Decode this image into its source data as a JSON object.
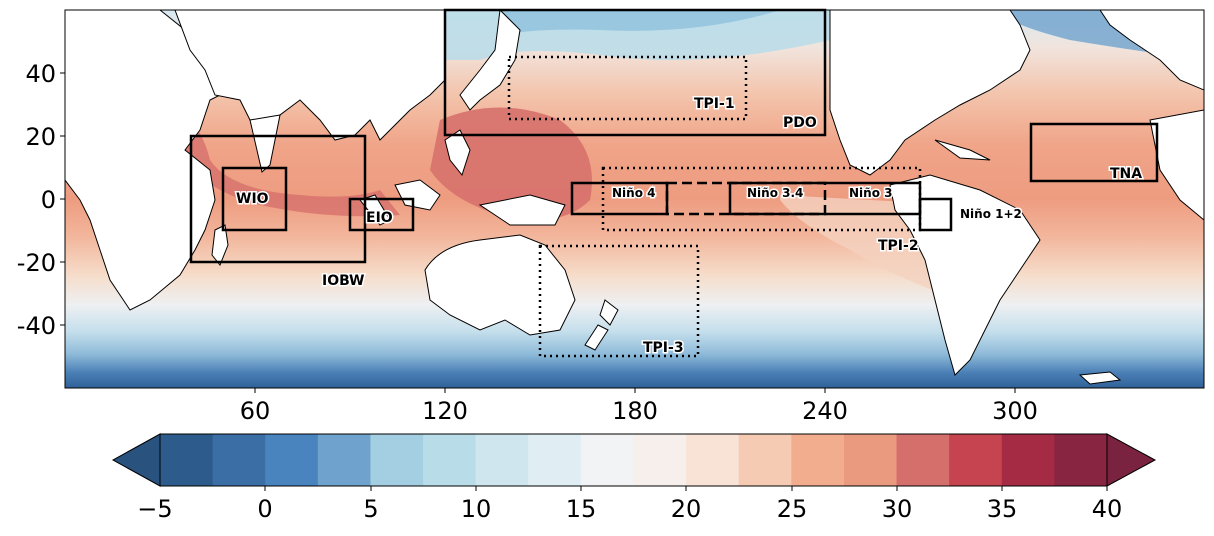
{
  "axes": {
    "x_ticks": [
      "60",
      "120",
      "180",
      "240",
      "300"
    ],
    "y_ticks": [
      "40",
      "20",
      "0",
      "-20",
      "-40"
    ]
  },
  "regions": {
    "pdo": "PDO",
    "tpi1": "TPI-1",
    "tpi2": "TPI-2",
    "tpi3": "TPI-3",
    "nino4": "Niño 4",
    "nino34": "Niño 3.4",
    "nino3": "Niño 3",
    "nino12": "Niño 1+2",
    "wio": "WIO",
    "eio": "EIO",
    "iobw": "IOBW",
    "tna": "TNA"
  },
  "colorbar": {
    "ticks": [
      "−5",
      "0",
      "5",
      "10",
      "15",
      "20",
      "25",
      "30",
      "35",
      "40"
    ],
    "colors": [
      "#2c5b8c",
      "#3a6ea5",
      "#4a84bf",
      "#6fa2cd",
      "#a4cfe2",
      "#b9dce9",
      "#cfe6ef",
      "#e0eef4",
      "#f1f3f4",
      "#f6efeb",
      "#f8e3d6",
      "#f6cbb4",
      "#f2ad8f",
      "#ea9a7e",
      "#d46f6c",
      "#c5444f",
      "#a52b45",
      "#882540"
    ]
  },
  "colors": {
    "land": "#ffffff",
    "coast": "#000000",
    "box": "#000000"
  }
}
